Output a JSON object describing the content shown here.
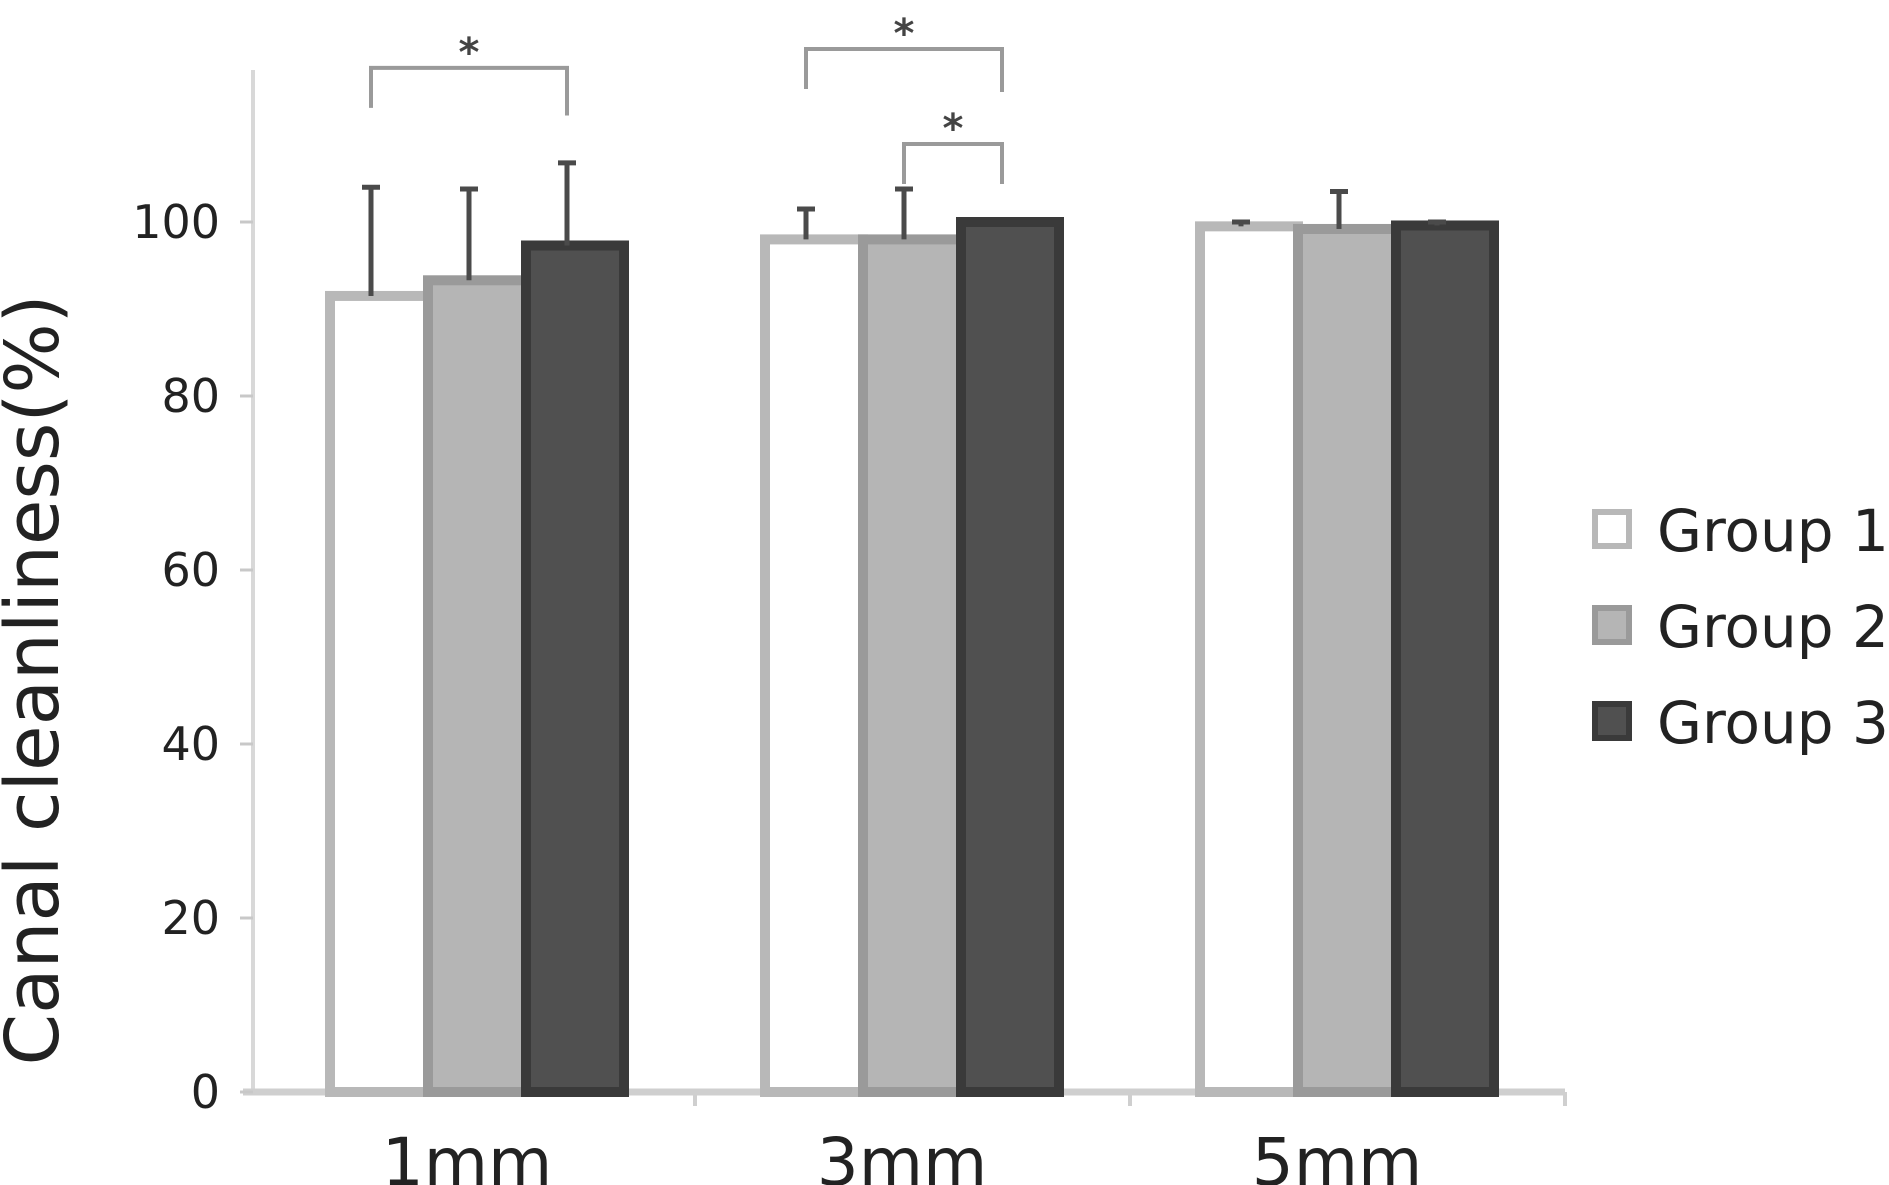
{
  "chart_data": {
    "type": "bar",
    "title": "",
    "xlabel": "",
    "ylabel": "Canal cleanliness(%)",
    "ylim": [
      0,
      100
    ],
    "yticks": [
      0,
      20,
      40,
      60,
      80,
      100
    ],
    "categories": [
      "1mm",
      "3mm",
      "5mm"
    ],
    "series": [
      {
        "name": "Group 1",
        "values": [
          91.5,
          98.0,
          99.5
        ],
        "errors": [
          12.5,
          3.5,
          0.5
        ],
        "color": "#ffffff"
      },
      {
        "name": "Group 2",
        "values": [
          93.3,
          98.0,
          99.2
        ],
        "errors": [
          10.5,
          5.8,
          4.3
        ],
        "color": "#b5b5b5"
      },
      {
        "name": "Group 3",
        "values": [
          97.3,
          100.0,
          99.6
        ],
        "errors": [
          9.5,
          0.0,
          0.4
        ],
        "color": "#505050"
      }
    ],
    "significance": [
      {
        "category": "1mm",
        "from_series": 0,
        "to_series": 2,
        "label": "*"
      },
      {
        "category": "3mm",
        "from_series": 0,
        "to_series": 2,
        "label": "*"
      },
      {
        "category": "3mm",
        "from_series": 1,
        "to_series": 2,
        "label": "*"
      }
    ],
    "legend_position": "right",
    "grid": false
  }
}
